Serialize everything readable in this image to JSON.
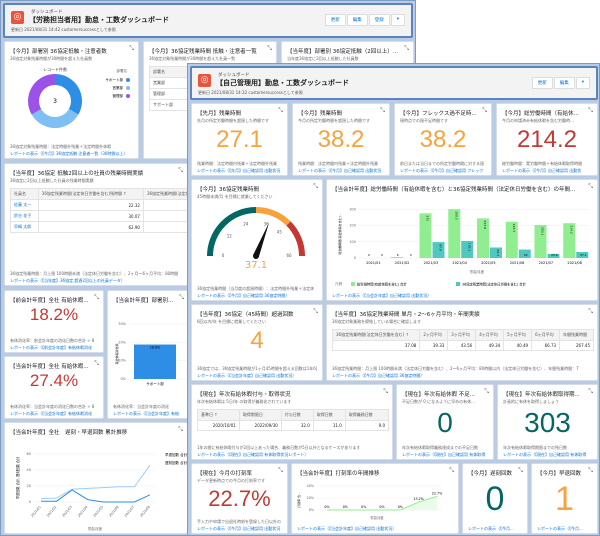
{
  "back": {
    "header": {
      "subtitle": "ダッシュボード",
      "title": "【労務担当者用】勤怠・工数ダッシュボード",
      "updated": "更新日 2021/08/31 14:42 customersuccessとして参照",
      "buttons": [
        "更新",
        "編集",
        "登録"
      ]
    },
    "p1": {
      "title": "【今月】部署別 36協定抵触・注意者数",
      "sub": "36協定対象残業時間が30時間を超えた社員数",
      "center_label": "レコード件数",
      "center_value": "3",
      "legend_title": "部署名",
      "note": "36協定対象残業時間：法定時間外残業＋法定時間外休暇",
      "link": "レポートの表示（【今月】36協定抵触 注意者一覧（30時間以上）"
    },
    "p2": {
      "title": "【今月】36協定残業時間 抵触・注意者一覧",
      "sub": "36協定対象残業時間が30時間を超えた社員一覧",
      "col": "部署名",
      "rows": [
        "営業部",
        "管理部",
        "サポート部"
      ]
    },
    "p3": {
      "title": "【当年度】部署別 36協定抵触（2回以上）...",
      "sub": "当年度36協定に2回以上抵触した社員数"
    },
    "p4": {
      "title": "【当年度】36協定 抵触2回以上の社員の残業時間実績",
      "sub": "36協定に2回以上抵触した社員の残業時間実績",
      "cols": [
        "社員名",
        "36協定残業時間(法定休日労働を含む)残時間 ↑",
        "36協定残業時間(法定休日労"
      ],
      "rows": [
        [
          "佐藤 太一",
          "22.32"
        ],
        [
          "鈴谷 花子",
          "30.07"
        ],
        [
          "早嶋 太郎",
          "62.90"
        ]
      ],
      "note": "36協定残業時間：月上限 100時間未満（法定休日労働を含む）、2ヶ月〜6ヶ月平均：80時間",
      "link": "レポートの表示（【当年度】36協定 超過2回以上の社員データ）"
    },
    "p5": {
      "title": "【前会計年度】全社 有給休暇...",
      "value": "18.2%",
      "note": "有休消化率：前会計年度の消化日数の合計 ÷ 8",
      "link": "レポートの表示（【前会計年度】有給休暇消化"
    },
    "p6": {
      "title": "【当会計年度】全社 有給休暇...",
      "value": "27.4%",
      "note": "有休消化率：当会計年度の消化日数の合計 ÷ 8",
      "link": "レポートの表示（【当会計年度】有給休暇消化"
    },
    "p7": {
      "title": "【当会計年度】部署別 有給休",
      "note": "有休消化率：当会計年度の消化",
      "link": "レポートの表示（【当会計年度】有給"
    },
    "p8": {
      "title": "【当会計年度】全社　遅刻・早退回数 累計推移"
    }
  },
  "front": {
    "header": {
      "subtitle": "ダッシュボード",
      "title": "【自己管理用】勤怠・工数ダッシュボード",
      "updated": "更新日 2021/08/31 14:32 customersuccessとして参照",
      "buttons": [
        "更新",
        "編集"
      ]
    },
    "t1": {
      "title": "【先月】残業時間",
      "sub": "先月の所定労働時間を超過した時間です",
      "value": "27.1",
      "note": "残業時間：法定時間内残業＋法定時間外残業",
      "link": "レポートの表示（【先月】自己確認用 出勤状況"
    },
    "t2": {
      "title": "【今月】残業時間",
      "sub": "今月の所定労働時間を超過した時間です",
      "value": "38.2",
      "note": "残業時間：法定時間内残業＋法定時間外残業",
      "link": "レポートの表示（【今月】自己確認用 出勤状況"
    },
    "t3": {
      "title": "【今月】フレックス過不足時...",
      "sub": "現時点での過不足時間です",
      "value": "38.2",
      "note": "前日または当日までの所定労働時間に対する過",
      "link": "レポートの表示（【今月】自己確認用 フレック"
    },
    "t4": {
      "title": "【今月】総労働時間（有給休...",
      "sub": "今月の申請済み有給休暇を含む労働時...",
      "value": "214.2",
      "note": "総労働時間：実労働時間＋有給休暇取得時間",
      "link": "レポートの表示（【今月】自己確認用 出勤状"
    },
    "gauge": {
      "title": "【今月】36協定残業時間",
      "sub": "45時間未満/月 を目標に就業してください",
      "value": "37.1",
      "ticks": [
        "0",
        "12",
        "24",
        "36",
        "45",
        "60"
      ],
      "note": "36協定残業時間（当月度の超過時間）：法定時間外残業＋法定休",
      "link": "レポートの表示（【今月】自己確認用 36協定時間）"
    },
    "bars": {
      "title": "【当会計年度】総労働時間（有給休暇を含む）と36協定残業時間（法定休日労働を含む）の年間...",
      "legend_title": "凡例",
      "link": "レポートの表示（【当会計年度】自己確認用 出勤状況）"
    },
    "over45": {
      "title": "【当年度】36協定（45時間）超過回数",
      "sub": "6回以内/年 を目標に就業してください",
      "value": "4",
      "note": "36協定では、36協定残業時間が1ヶ月45時間を超える回数は1年6回",
      "link": "レポートの表示（【当会計年度】自己確認用 出勤状況）"
    },
    "avg": {
      "title": "【当年度】36協定残業時間 単月・2〜6ヶ月平均・年間実績",
      "sub": "36協定対象業務を締結している場合に確認します",
      "cols": [
        "36協定残業時間(法定休日労働を含む) ↑",
        "2ヶ月平均",
        "3ヶ月平均",
        "4ヶ月平均",
        "5ヶ月平均",
        "6ヶ月平均",
        "年間残業時間"
      ],
      "row": [
        "37.08",
        "39.33",
        "43.56",
        "49.34",
        "40.49",
        "66.73",
        "267.45"
      ],
      "note": "36協定残業時間：月上限 100時間未満（法定休日労働を含む）、2〜6ヶ月平均：80時間以内（法定休日労働を含む）、年間残業時間：7",
      "link": "レポートの表示（【今月】自己確認用 36協定時間）"
    },
    "leave": {
      "title": "【現在】年次有給休暇付与・取得状況",
      "sub": "年次有給休暇は 5日/年 の取得が義務化されています",
      "cols": [
        "基準日 ↑",
        "取得期限日",
        "付与日数",
        "取得日数",
        "取得義務日数"
      ],
      "row": [
        "2020/10/01",
        "2022/09/30",
        "32.0",
        "11.0",
        "9.0"
      ],
      "note": "1年の間に有給休暇付与が2回以上あった場合、義務日数が5日以外となるケースがあります",
      "link": "レポートの表示（【現在】自己確認用 有休取得状況レポート）"
    },
    "short": {
      "title": "【現在】年次有給休暇 不足...",
      "sub": "不足日数が 0 になるように早めの有休...",
      "value": "0",
      "note": "年次有給休暇取得義務達成までの不足日数",
      "link": "レポートの表示（【現在】自己確認用 有休取得"
    },
    "remain": {
      "title": "【現在】年次有給休暇取得期...",
      "sub": "計画的に有休を取得しましょう",
      "value": "303",
      "note": "年次有給休暇取得期限までの残日数",
      "link": "レポートの表示（【現在】自己確認用 有休取得"
    },
    "stamp": {
      "title": "【現在】今月の打刻率",
      "sub": "データ更新時点での今月の打刻率です",
      "value": "22.7%",
      "note": "手入力や申請で出退社時刻を登録した日以外の",
      "link": "レポートの表示（【今月】自己確認用 出勤状況"
    },
    "stampline": {
      "title": "【当会計年度】打刻率の年間推移",
      "link": "レポートの表示（【当会計年度】自己確認用 出勤状況）"
    },
    "late": {
      "title": "【今月】遅刻回数",
      "value": "0",
      "link": "レポートの表示（【今月..."
    },
    "early": {
      "title": "【今月】早退回数",
      "value": "1",
      "link": "レポートの表示（【今月..."
    }
  },
  "colors": {
    "orange": "#f7a23b",
    "red": "#c23934",
    "teal": "#056764",
    "link": "#0070d2",
    "green_bar": "#90ee90",
    "teal_bar": "#50c8c0",
    "blue": "#2e8ee6"
  },
  "chart_data": [
    {
      "type": "pie",
      "name": "donut",
      "categories": [
        "サポート部",
        "営業部",
        "管理部"
      ],
      "values": [
        1,
        1,
        1
      ],
      "colors": [
        "#2e8ee6",
        "#7fbff2",
        "#9a52e8"
      ],
      "center": "3"
    },
    {
      "type": "bar",
      "categories": [
        "サポート部"
      ],
      "values": [
        18.8
      ],
      "labels": [
        "18.8%"
      ],
      "yticks": [
        "0%",
        "10%",
        "20%",
        "30%"
      ],
      "ylim": [
        0,
        30
      ],
      "ylabel": "有給休暇消化率"
    },
    {
      "type": "line",
      "x": [
        "2021/01",
        "2021/02",
        "2021/03",
        "2021/04",
        "2021/05",
        "2021/06",
        "2021/07",
        "2021/08"
      ],
      "series": [
        {
          "name": "早退回数 合計",
          "values": [
            4,
            5,
            16,
            17,
            18,
            19,
            19,
            46
          ],
          "color": "#9fcdf5"
        },
        {
          "name": "遅刻回数 合計",
          "values": [
            1,
            1,
            15,
            3,
            0,
            0,
            0,
            9
          ],
          "color": "#2e8ee6"
        }
      ],
      "yticks": [
        "0",
        "20",
        "40",
        "60"
      ],
      "ylim": [
        0,
        60
      ],
      "xlabel": "勤怠月度",
      "ylabel": "早退回数 合計, 遅刻回数 合計"
    },
    {
      "type": "gauge",
      "value": 37.1,
      "range": [
        0,
        60
      ],
      "bands": [
        [
          0,
          30,
          "#056764"
        ],
        [
          30,
          45,
          "#f7a23b"
        ],
        [
          45,
          60,
          "#c23934"
        ]
      ]
    },
    {
      "type": "bar",
      "categories": [
        "2021/01",
        "2021/02",
        "2021/03",
        "2021/04",
        "2021/05",
        "2021/06",
        "2021/07",
        "2021/08"
      ],
      "series": [
        {
          "name": "総労働時間(有給休暇を含む) 合計",
          "values": [
            0,
            6,
            275,
            300.5,
            243.8,
            223.5,
            203.1,
            214.2
          ],
          "color": "#90ee90"
        },
        {
          "name": "36協定残業時間(法定休日労働を含む) 合計",
          "values": [
            0,
            0,
            97.9,
            105.1,
            64.7,
            52,
            25.6,
            37.1
          ],
          "color": "#50c8c0"
        }
      ],
      "labels": [
        [
          "0",
          "6",
          "275",
          "300.5",
          "243.8",
          "223.5",
          "203.1",
          "214.2"
        ],
        [
          "0",
          "0",
          "97.9",
          "105.1",
          "64.7",
          "52",
          "25.6",
          "37.1"
        ]
      ],
      "yticks": [
        "0",
        "100",
        "200",
        "300"
      ],
      "ylim": [
        0,
        320
      ],
      "xlabel": "勤怠月度",
      "ylabel": "総労働時間(有給休暇を含む)..."
    },
    {
      "type": "line",
      "values": [
        0,
        0,
        0,
        0,
        0,
        13.2,
        22.7
      ],
      "labels": [
        "0%",
        "0%",
        "0%",
        "0%",
        "0%",
        "13.2%",
        "22.7%"
      ],
      "yticks": [
        "0%",
        "20%",
        "40%"
      ],
      "ylim": [
        0,
        40
      ],
      "xlabel": "勤怠月度",
      "ylabel": "打刻率 合..."
    }
  ]
}
